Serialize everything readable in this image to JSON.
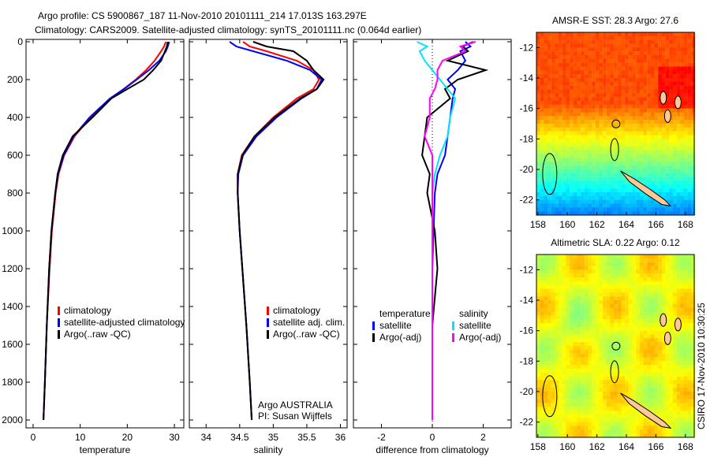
{
  "title": {
    "line1": "Argo profile: CS 5900867_187 11-Nov-2010 20101111_214 17.013S 163.297E",
    "line2": "Climatology: CARS2009. Satellite-adjusted climatology: synTS_20101111.nc (0.064d earlier)"
  },
  "side_label": "CSIRO 17-Nov-2010 10:30:25",
  "colors": {
    "climatology": "#ff0000",
    "satellite": "#0000ff",
    "argo": "#000000",
    "sal_satellite": "#00e5ff",
    "sal_argo": "#ff00ff"
  },
  "chart_data": [
    {
      "type": "line",
      "name": "temperature",
      "xlabel": "temperature",
      "xlim": [
        -1.5,
        32
      ],
      "ylim": [
        0,
        2000
      ],
      "xticks": [
        "0",
        "10",
        "20",
        "30"
      ],
      "xtick_values": [
        0,
        10,
        20,
        30
      ],
      "yticks": [
        "0",
        "200",
        "400",
        "600",
        "800",
        "1000",
        "1200",
        "1400",
        "1600",
        "1800",
        "2000"
      ],
      "depth": [
        0,
        25,
        50,
        100,
        150,
        200,
        250,
        300,
        400,
        500,
        600,
        700,
        800,
        1000,
        1200,
        1500,
        1800,
        2000
      ],
      "series": [
        {
          "name": "climatology",
          "color": "#ff0000",
          "values": [
            28.2,
            27.8,
            27.2,
            25.8,
            24,
            21.8,
            19.2,
            16.4,
            12.2,
            8.8,
            6.6,
            5.4,
            4.8,
            4.0,
            3.5,
            2.9,
            2.5,
            2.2
          ]
        },
        {
          "name": "satellite-adjusted climatology",
          "color": "#0000ff",
          "values": [
            28.9,
            28.6,
            28.2,
            26.8,
            24.6,
            22.0,
            19.3,
            16.3,
            12.0,
            8.6,
            6.5,
            5.3,
            4.7,
            3.9,
            3.4,
            2.9,
            2.5,
            2.2
          ]
        },
        {
          "name": "Argo(..raw -QC)",
          "color": "#000000",
          "values": [
            28.6,
            28.4,
            28.0,
            27.2,
            25.5,
            23.5,
            20.0,
            16.6,
            12.6,
            8.4,
            6.3,
            5.2,
            4.7,
            3.9,
            3.4,
            2.9,
            2.5,
            2.2
          ]
        }
      ],
      "legend": [
        "climatology",
        "satellite-adjusted climatology",
        "Argo(..raw -QC)"
      ]
    },
    {
      "type": "line",
      "name": "salinity",
      "xlabel": "salinity",
      "xlim": [
        33.75,
        36.1
      ],
      "ylim": [
        0,
        2000
      ],
      "xticks": [
        "34",
        "34.5",
        "35",
        "35.5",
        "36"
      ],
      "xtick_values": [
        34,
        34.5,
        35,
        35.5,
        36
      ],
      "depth": [
        0,
        25,
        50,
        100,
        150,
        200,
        250,
        300,
        400,
        500,
        600,
        700,
        800,
        1000,
        1200,
        1500,
        1800,
        2000
      ],
      "series": [
        {
          "name": "climatology",
          "color": "#ff0000",
          "values": [
            34.55,
            34.65,
            34.9,
            35.35,
            35.6,
            35.68,
            35.6,
            35.35,
            35.0,
            34.72,
            34.53,
            34.47,
            34.47,
            34.5,
            34.54,
            34.6,
            34.65,
            34.68
          ]
        },
        {
          "name": "satellite adj. clim.",
          "color": "#0000ff",
          "values": [
            34.35,
            34.45,
            34.7,
            35.2,
            35.55,
            35.72,
            35.65,
            35.42,
            35.05,
            34.75,
            34.55,
            34.48,
            34.47,
            34.5,
            34.54,
            34.6,
            34.65,
            34.68
          ]
        },
        {
          "name": "Argo(..raw -QC)",
          "color": "#000000",
          "values": [
            34.7,
            34.9,
            35.3,
            35.5,
            35.6,
            35.75,
            35.65,
            35.4,
            35.02,
            34.72,
            34.54,
            34.47,
            34.47,
            34.5,
            34.54,
            34.6,
            34.65,
            34.68
          ]
        }
      ],
      "legend": [
        "climatology",
        "satellite adj. clim.",
        "Argo(..raw -QC)"
      ],
      "annotation": [
        "Argo AUSTRALIA",
        "PI: Susan Wijffels"
      ]
    },
    {
      "type": "line",
      "name": "difference",
      "xlabel": "difference from climatology",
      "xlim": [
        -3.1,
        3.1
      ],
      "ylim": [
        0,
        2000
      ],
      "xticks": [
        "-2",
        "0",
        "2"
      ],
      "xtick_values": [
        -2,
        0,
        2
      ],
      "depth": [
        0,
        25,
        50,
        100,
        150,
        200,
        250,
        300,
        400,
        500,
        600,
        700,
        800,
        1000,
        1200,
        1500,
        1800,
        2000
      ],
      "series": [
        {
          "name": "temperature satellite",
          "color": "#0000ff",
          "values": [
            1.3,
            1.5,
            1.1,
            1.3,
            1.0,
            0.6,
            0.9,
            0.8,
            0.7,
            0.6,
            0.5,
            0.2,
            0.1,
            0.05,
            0,
            0,
            0,
            0
          ]
        },
        {
          "name": "temperature Argo(-adj)",
          "color": "#000000",
          "values": [
            1.6,
            1.2,
            1.4,
            0.6,
            2.1,
            1.0,
            0.5,
            0.7,
            -0.2,
            -0.3,
            -0.4,
            -0.1,
            -0.2,
            0.1,
            0.2,
            0,
            0,
            0
          ]
        },
        {
          "name": "salinity satellite",
          "color": "#00e5ff",
          "values": [
            -0.6,
            -0.2,
            -0.5,
            -0.3,
            0,
            0.3,
            0.6,
            0.9,
            0.7,
            0.6,
            0.3,
            0.1,
            0,
            0,
            0,
            0,
            0,
            0
          ]
        },
        {
          "name": "salinity Argo(-adj)",
          "color": "#ff00ff",
          "values": [
            1.7,
            1.1,
            1.3,
            0.4,
            0.2,
            0.2,
            0.1,
            -0.1,
            -0.1,
            -0.3,
            0,
            0,
            0,
            0,
            0,
            0,
            0,
            0
          ]
        }
      ],
      "legend_titles": [
        "temperature",
        "salinity"
      ],
      "legend": [
        "satellite",
        "Argo(-adj)",
        "satellite",
        "Argo(-adj)"
      ]
    },
    {
      "type": "heatmap",
      "name": "sst-map",
      "title": "AMSR-E SST: 28.3 Argo: 27.6",
      "xlim": [
        157.9,
        168.6
      ],
      "ylim": [
        -23,
        -11
      ],
      "xticks": [
        "158",
        "160",
        "162",
        "164",
        "166",
        "168"
      ],
      "xtick_values": [
        158,
        160,
        162,
        164,
        166,
        168
      ],
      "yticks": [
        "-12",
        "-14",
        "-16",
        "-18",
        "-20",
        "-22"
      ],
      "ytick_values": [
        -12,
        -14,
        -16,
        -18,
        -20,
        -22
      ],
      "float_position": [
        163.297,
        -17.013
      ]
    },
    {
      "type": "heatmap",
      "name": "sla-map",
      "title": "Altimetric SLA: 0.22 Argo: 0.12",
      "xlim": [
        157.9,
        168.6
      ],
      "ylim": [
        -23,
        -11
      ],
      "xticks": [
        "158",
        "160",
        "162",
        "164",
        "166",
        "168"
      ],
      "xtick_values": [
        158,
        160,
        162,
        164,
        166,
        168
      ],
      "yticks": [
        "-12",
        "-14",
        "-16",
        "-18",
        "-20",
        "-22"
      ],
      "ytick_values": [
        -12,
        -14,
        -16,
        -18,
        -20,
        -22
      ],
      "float_position": [
        163.297,
        -17.013
      ]
    }
  ]
}
